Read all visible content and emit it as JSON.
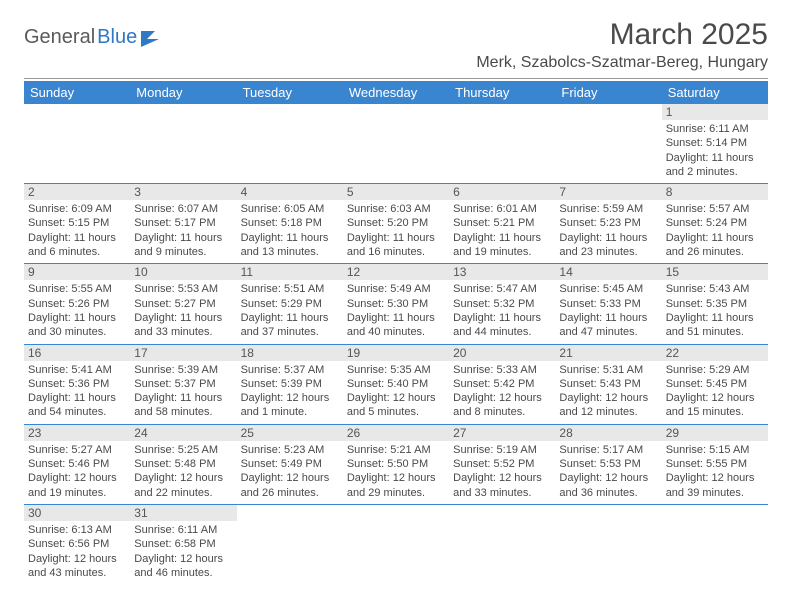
{
  "logo": {
    "text1": "General",
    "text2": "Blue"
  },
  "title": "March 2025",
  "location": "Merk, Szabolcs-Szatmar-Bereg, Hungary",
  "colors": {
    "header_bg": "#3a85d0",
    "header_text": "#ffffff",
    "daynum_bg": "#e8e8e8",
    "border": "#3a85d0",
    "logo_blue": "#2f78c4",
    "text": "#4a4a4a"
  },
  "weekdays": [
    "Sunday",
    "Monday",
    "Tuesday",
    "Wednesday",
    "Thursday",
    "Friday",
    "Saturday"
  ],
  "weeks": [
    [
      {
        "empty": true
      },
      {
        "empty": true
      },
      {
        "empty": true
      },
      {
        "empty": true
      },
      {
        "empty": true
      },
      {
        "empty": true
      },
      {
        "day": "1",
        "sunrise": "Sunrise: 6:11 AM",
        "sunset": "Sunset: 5:14 PM",
        "daylight": "Daylight: 11 hours and 2 minutes."
      }
    ],
    [
      {
        "day": "2",
        "sunrise": "Sunrise: 6:09 AM",
        "sunset": "Sunset: 5:15 PM",
        "daylight": "Daylight: 11 hours and 6 minutes."
      },
      {
        "day": "3",
        "sunrise": "Sunrise: 6:07 AM",
        "sunset": "Sunset: 5:17 PM",
        "daylight": "Daylight: 11 hours and 9 minutes."
      },
      {
        "day": "4",
        "sunrise": "Sunrise: 6:05 AM",
        "sunset": "Sunset: 5:18 PM",
        "daylight": "Daylight: 11 hours and 13 minutes."
      },
      {
        "day": "5",
        "sunrise": "Sunrise: 6:03 AM",
        "sunset": "Sunset: 5:20 PM",
        "daylight": "Daylight: 11 hours and 16 minutes."
      },
      {
        "day": "6",
        "sunrise": "Sunrise: 6:01 AM",
        "sunset": "Sunset: 5:21 PM",
        "daylight": "Daylight: 11 hours and 19 minutes."
      },
      {
        "day": "7",
        "sunrise": "Sunrise: 5:59 AM",
        "sunset": "Sunset: 5:23 PM",
        "daylight": "Daylight: 11 hours and 23 minutes."
      },
      {
        "day": "8",
        "sunrise": "Sunrise: 5:57 AM",
        "sunset": "Sunset: 5:24 PM",
        "daylight": "Daylight: 11 hours and 26 minutes."
      }
    ],
    [
      {
        "day": "9",
        "sunrise": "Sunrise: 5:55 AM",
        "sunset": "Sunset: 5:26 PM",
        "daylight": "Daylight: 11 hours and 30 minutes."
      },
      {
        "day": "10",
        "sunrise": "Sunrise: 5:53 AM",
        "sunset": "Sunset: 5:27 PM",
        "daylight": "Daylight: 11 hours and 33 minutes."
      },
      {
        "day": "11",
        "sunrise": "Sunrise: 5:51 AM",
        "sunset": "Sunset: 5:29 PM",
        "daylight": "Daylight: 11 hours and 37 minutes."
      },
      {
        "day": "12",
        "sunrise": "Sunrise: 5:49 AM",
        "sunset": "Sunset: 5:30 PM",
        "daylight": "Daylight: 11 hours and 40 minutes."
      },
      {
        "day": "13",
        "sunrise": "Sunrise: 5:47 AM",
        "sunset": "Sunset: 5:32 PM",
        "daylight": "Daylight: 11 hours and 44 minutes."
      },
      {
        "day": "14",
        "sunrise": "Sunrise: 5:45 AM",
        "sunset": "Sunset: 5:33 PM",
        "daylight": "Daylight: 11 hours and 47 minutes."
      },
      {
        "day": "15",
        "sunrise": "Sunrise: 5:43 AM",
        "sunset": "Sunset: 5:35 PM",
        "daylight": "Daylight: 11 hours and 51 minutes."
      }
    ],
    [
      {
        "day": "16",
        "sunrise": "Sunrise: 5:41 AM",
        "sunset": "Sunset: 5:36 PM",
        "daylight": "Daylight: 11 hours and 54 minutes."
      },
      {
        "day": "17",
        "sunrise": "Sunrise: 5:39 AM",
        "sunset": "Sunset: 5:37 PM",
        "daylight": "Daylight: 11 hours and 58 minutes."
      },
      {
        "day": "18",
        "sunrise": "Sunrise: 5:37 AM",
        "sunset": "Sunset: 5:39 PM",
        "daylight": "Daylight: 12 hours and 1 minute."
      },
      {
        "day": "19",
        "sunrise": "Sunrise: 5:35 AM",
        "sunset": "Sunset: 5:40 PM",
        "daylight": "Daylight: 12 hours and 5 minutes."
      },
      {
        "day": "20",
        "sunrise": "Sunrise: 5:33 AM",
        "sunset": "Sunset: 5:42 PM",
        "daylight": "Daylight: 12 hours and 8 minutes."
      },
      {
        "day": "21",
        "sunrise": "Sunrise: 5:31 AM",
        "sunset": "Sunset: 5:43 PM",
        "daylight": "Daylight: 12 hours and 12 minutes."
      },
      {
        "day": "22",
        "sunrise": "Sunrise: 5:29 AM",
        "sunset": "Sunset: 5:45 PM",
        "daylight": "Daylight: 12 hours and 15 minutes."
      }
    ],
    [
      {
        "day": "23",
        "sunrise": "Sunrise: 5:27 AM",
        "sunset": "Sunset: 5:46 PM",
        "daylight": "Daylight: 12 hours and 19 minutes."
      },
      {
        "day": "24",
        "sunrise": "Sunrise: 5:25 AM",
        "sunset": "Sunset: 5:48 PM",
        "daylight": "Daylight: 12 hours and 22 minutes."
      },
      {
        "day": "25",
        "sunrise": "Sunrise: 5:23 AM",
        "sunset": "Sunset: 5:49 PM",
        "daylight": "Daylight: 12 hours and 26 minutes."
      },
      {
        "day": "26",
        "sunrise": "Sunrise: 5:21 AM",
        "sunset": "Sunset: 5:50 PM",
        "daylight": "Daylight: 12 hours and 29 minutes."
      },
      {
        "day": "27",
        "sunrise": "Sunrise: 5:19 AM",
        "sunset": "Sunset: 5:52 PM",
        "daylight": "Daylight: 12 hours and 33 minutes."
      },
      {
        "day": "28",
        "sunrise": "Sunrise: 5:17 AM",
        "sunset": "Sunset: 5:53 PM",
        "daylight": "Daylight: 12 hours and 36 minutes."
      },
      {
        "day": "29",
        "sunrise": "Sunrise: 5:15 AM",
        "sunset": "Sunset: 5:55 PM",
        "daylight": "Daylight: 12 hours and 39 minutes."
      }
    ],
    [
      {
        "day": "30",
        "sunrise": "Sunrise: 6:13 AM",
        "sunset": "Sunset: 6:56 PM",
        "daylight": "Daylight: 12 hours and 43 minutes."
      },
      {
        "day": "31",
        "sunrise": "Sunrise: 6:11 AM",
        "sunset": "Sunset: 6:58 PM",
        "daylight": "Daylight: 12 hours and 46 minutes."
      },
      {
        "empty": true
      },
      {
        "empty": true
      },
      {
        "empty": true
      },
      {
        "empty": true
      },
      {
        "empty": true
      }
    ]
  ]
}
